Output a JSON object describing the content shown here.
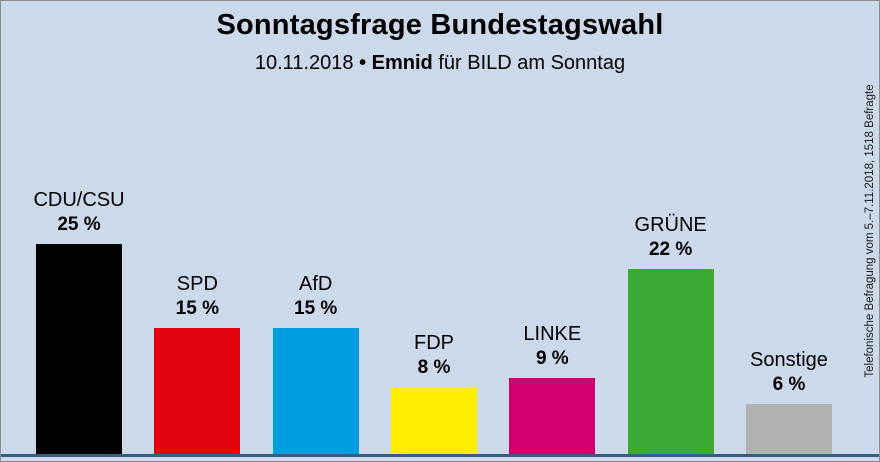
{
  "title": "Sonntagsfrage Bundestagswahl",
  "subtitle": {
    "date": "10.11.2018",
    "bullet": "•",
    "institute": "Emnid",
    "suffix": "für BILD am Sonntag"
  },
  "side_note": "Telefonische Befragung vom 5.–7.11.2018, 1518 Befragte",
  "chart_data": {
    "type": "bar",
    "title": "Sonntagsfrage Bundestagswahl",
    "subtitle": "10.11.2018 • Emnid für BILD am Sonntag",
    "categories": [
      "CDU/CSU",
      "SPD",
      "AfD",
      "FDP",
      "LINKE",
      "GRÜNE",
      "Sonstige"
    ],
    "values": [
      25,
      15,
      15,
      8,
      9,
      22,
      6
    ],
    "value_labels": [
      "25 %",
      "15 %",
      "15 %",
      "8 %",
      "9 %",
      "22 %",
      "6 %"
    ],
    "bar_colors": [
      "#000000",
      "#e3000f",
      "#009ee0",
      "#ffed00",
      "#d2006e",
      "#3aaa35",
      "#b2b2b2"
    ],
    "xlabel": "",
    "ylabel": "",
    "ylim": [
      0,
      26
    ],
    "grid": false,
    "legend": false,
    "annotation": "Telefonische Befragung vom 5.–7.11.2018, 1518 Befragte"
  },
  "colors": {
    "background": "#ccd9ea",
    "baseline": "#33607e",
    "text": "#000000",
    "border": "#8c8c8c"
  }
}
